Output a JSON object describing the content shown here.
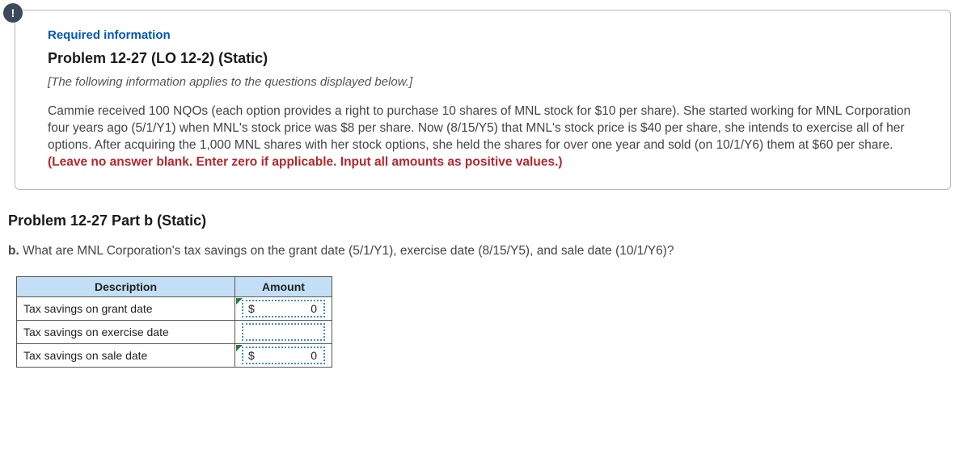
{
  "badge": {
    "symbol": "!"
  },
  "info": {
    "required_label": "Required information",
    "problem_title": "Problem 12-27 (LO 12-2) (Static)",
    "applies_note": "[The following information applies to the questions displayed below.]",
    "body_text": "Cammie received 100 NQOs (each option provides a right to purchase 10 shares of MNL stock for $10 per share). She started working for MNL Corporation  four years ago (5/1/Y1) when MNL's stock price was $8 per share. Now (8/15/Y5) that MNL's stock price is $40 per share, she intends to exercise all of her options. After acquiring the 1,000 MNL shares with her stock options, she held the shares for over one year and sold (on 10/1/Y6) them at $60 per share. ",
    "red_instruction": "(Leave no answer blank. Enter zero if applicable. Input all amounts as positive values.)"
  },
  "part": {
    "title": "Problem 12-27 Part b (Static)",
    "label": "b.",
    "question": " What are MNL Corporation's tax savings on the grant date (5/1/Y1), exercise date (8/15/Y5), and sale date (10/1/Y6)?"
  },
  "table": {
    "header_bg": "#c3dff5",
    "border_color": "#555555",
    "input_border_color": "#3b8fd6",
    "marker_color": "#2a7a3a",
    "columns": [
      "Description",
      "Amount"
    ],
    "rows": [
      {
        "desc": "Tax savings on grant date",
        "currency": "$",
        "value": "0",
        "has_marker": true
      },
      {
        "desc": "Tax savings on exercise date",
        "currency": "",
        "value": "",
        "has_marker": false
      },
      {
        "desc": "Tax savings on sale date",
        "currency": "$",
        "value": "0",
        "has_marker": true
      }
    ]
  }
}
